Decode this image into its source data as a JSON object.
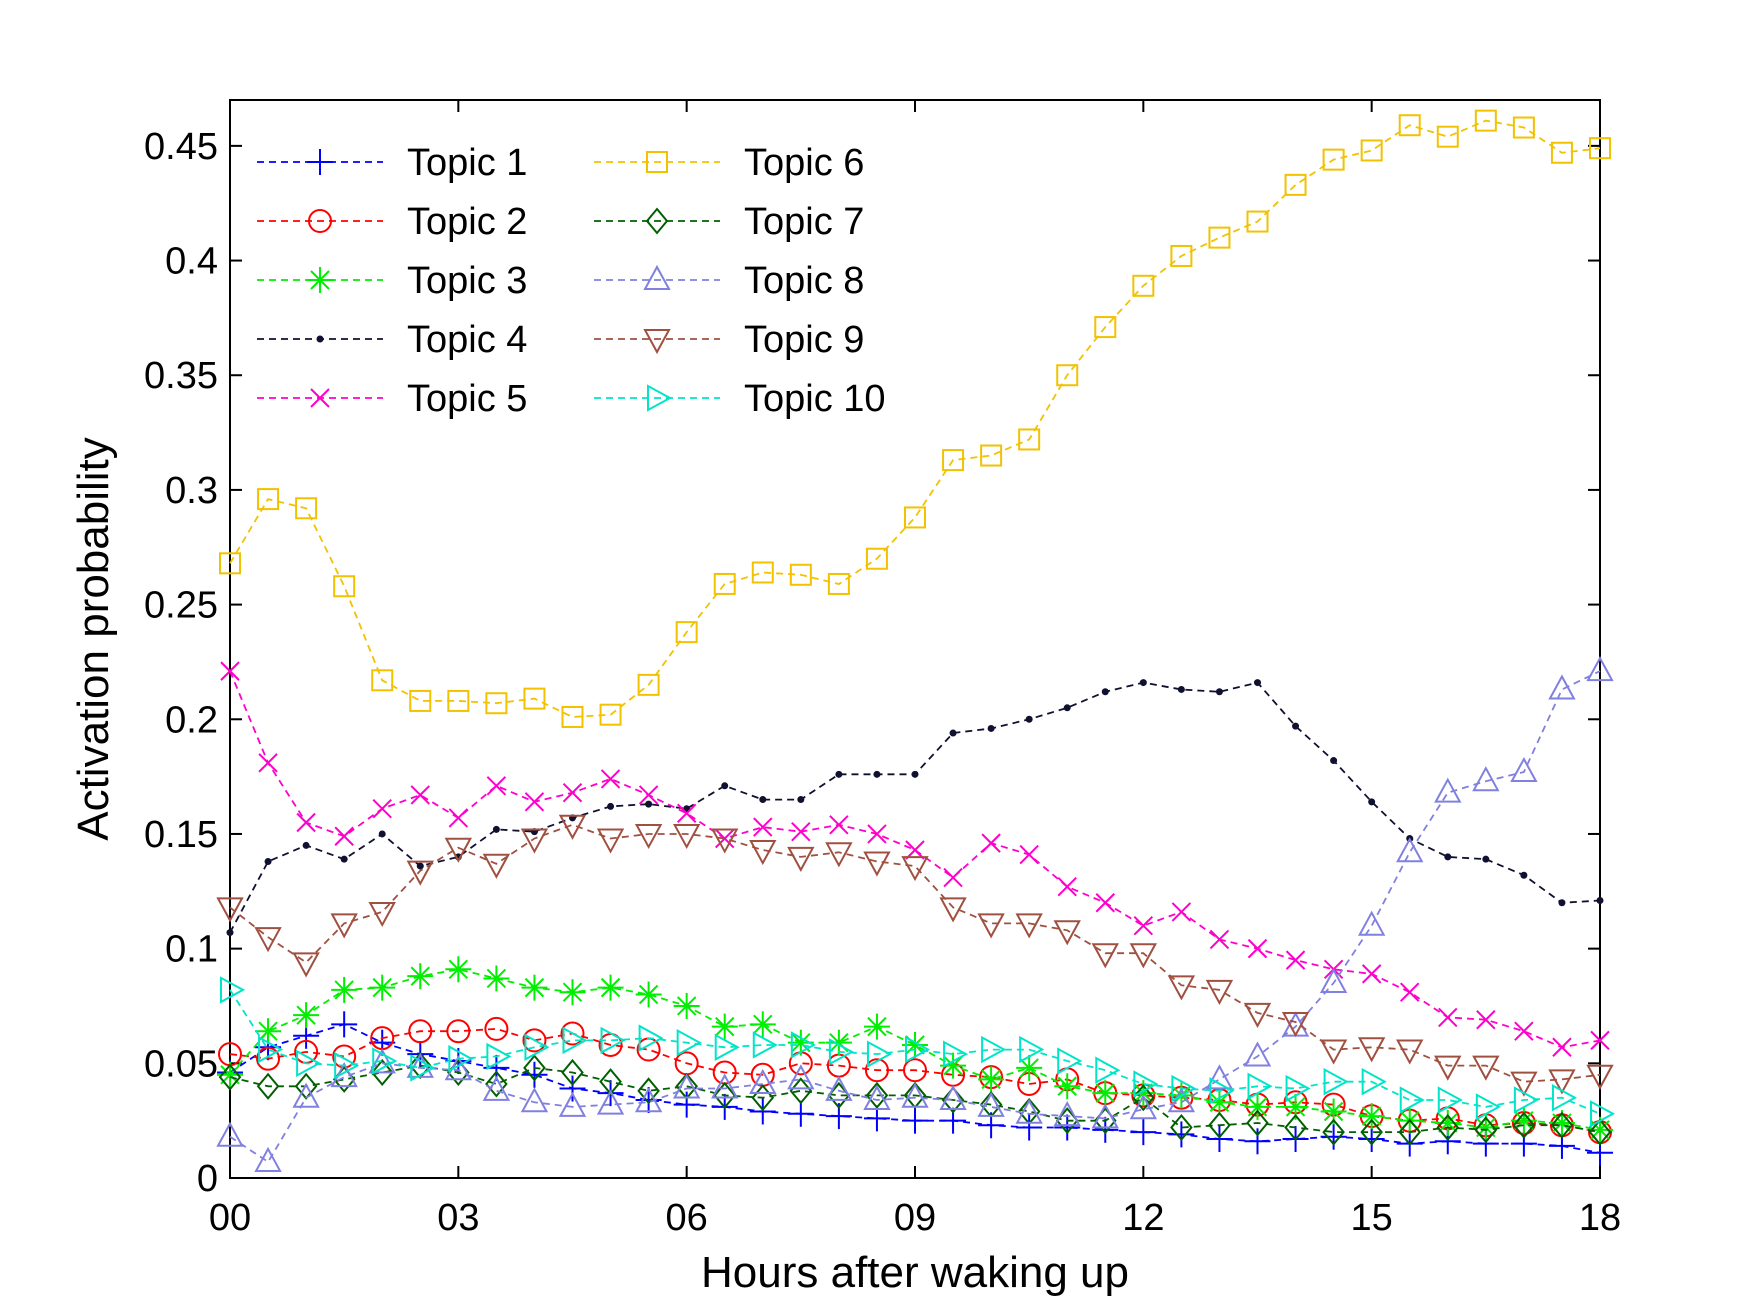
{
  "chart_data": {
    "type": "line",
    "title": "",
    "xlabel": "Hours after waking up",
    "ylabel": "Activation probability",
    "xlim": [
      0,
      18
    ],
    "ylim": [
      0,
      0.47
    ],
    "x_ticks": [
      0,
      3,
      6,
      9,
      12,
      15,
      18
    ],
    "x_tick_labels": [
      "00",
      "03",
      "06",
      "09",
      "12",
      "15",
      "18"
    ],
    "y_ticks": [
      0,
      0.05,
      0.1,
      0.15,
      0.2,
      0.25,
      0.3,
      0.35,
      0.4,
      0.45
    ],
    "y_tick_labels": [
      "0",
      "0.05",
      "0.1",
      "0.15",
      "0.2",
      "0.25",
      "0.3",
      "0.35",
      "0.4",
      "0.45"
    ],
    "grid": false,
    "legend_position": "top-left",
    "line_style": "dashed",
    "x": [
      0,
      0.5,
      1,
      1.5,
      2,
      2.5,
      3,
      3.5,
      4,
      4.5,
      5,
      5.5,
      6,
      6.5,
      7,
      7.5,
      8,
      8.5,
      9,
      9.5,
      10,
      10.5,
      11,
      11.5,
      12,
      12.5,
      13,
      13.5,
      14,
      14.5,
      15,
      15.5,
      16,
      16.5,
      17,
      17.5,
      18
    ],
    "series": [
      {
        "name": "Topic 1",
        "color": "#0000ff",
        "marker": "plus",
        "values": [
          0.046,
          0.057,
          0.062,
          0.067,
          0.059,
          0.054,
          0.051,
          0.048,
          0.045,
          0.039,
          0.037,
          0.034,
          0.032,
          0.031,
          0.029,
          0.028,
          0.027,
          0.026,
          0.025,
          0.025,
          0.023,
          0.022,
          0.022,
          0.021,
          0.02,
          0.019,
          0.017,
          0.016,
          0.017,
          0.018,
          0.017,
          0.015,
          0.016,
          0.015,
          0.015,
          0.014,
          0.011
        ]
      },
      {
        "name": "Topic 2",
        "color": "#ff0000",
        "marker": "circle",
        "values": [
          0.054,
          0.052,
          0.055,
          0.053,
          0.061,
          0.064,
          0.064,
          0.065,
          0.06,
          0.063,
          0.058,
          0.056,
          0.05,
          0.046,
          0.045,
          0.05,
          0.049,
          0.047,
          0.047,
          0.045,
          0.044,
          0.041,
          0.043,
          0.037,
          0.036,
          0.035,
          0.034,
          0.032,
          0.033,
          0.032,
          0.027,
          0.025,
          0.026,
          0.023,
          0.024,
          0.023,
          0.02
        ]
      },
      {
        "name": "Topic 3",
        "color": "#00ee00",
        "marker": "asterisk",
        "values": [
          0.045,
          0.064,
          0.071,
          0.082,
          0.083,
          0.088,
          0.091,
          0.087,
          0.083,
          0.081,
          0.083,
          0.08,
          0.075,
          0.066,
          0.067,
          0.059,
          0.059,
          0.066,
          0.058,
          0.049,
          0.043,
          0.048,
          0.04,
          0.037,
          0.037,
          0.036,
          0.033,
          0.031,
          0.031,
          0.029,
          0.027,
          0.025,
          0.024,
          0.022,
          0.025,
          0.024,
          0.021
        ]
      },
      {
        "name": "Topic 4",
        "color": "#101030",
        "marker": "dot",
        "values": [
          0.107,
          0.138,
          0.145,
          0.139,
          0.15,
          0.136,
          0.14,
          0.152,
          0.151,
          0.157,
          0.162,
          0.163,
          0.161,
          0.171,
          0.165,
          0.165,
          0.176,
          0.176,
          0.176,
          0.194,
          0.196,
          0.2,
          0.205,
          0.212,
          0.216,
          0.213,
          0.212,
          0.216,
          0.197,
          0.182,
          0.164,
          0.148,
          0.14,
          0.139,
          0.132,
          0.12,
          0.121
        ]
      },
      {
        "name": "Topic 5",
        "color": "#ff00cc",
        "marker": "x",
        "values": [
          0.221,
          0.181,
          0.155,
          0.149,
          0.161,
          0.167,
          0.157,
          0.171,
          0.164,
          0.168,
          0.174,
          0.167,
          0.159,
          0.148,
          0.153,
          0.151,
          0.154,
          0.15,
          0.143,
          0.131,
          0.146,
          0.141,
          0.127,
          0.12,
          0.11,
          0.116,
          0.104,
          0.1,
          0.095,
          0.091,
          0.089,
          0.081,
          0.07,
          0.069,
          0.064,
          0.057,
          0.06
        ]
      },
      {
        "name": "Topic 6",
        "color": "#f2c200",
        "marker": "square",
        "values": [
          0.268,
          0.296,
          0.292,
          0.258,
          0.217,
          0.208,
          0.208,
          0.207,
          0.209,
          0.201,
          0.202,
          0.215,
          0.238,
          0.259,
          0.264,
          0.263,
          0.259,
          0.27,
          0.288,
          0.313,
          0.315,
          0.322,
          0.35,
          0.371,
          0.389,
          0.402,
          0.41,
          0.417,
          0.433,
          0.444,
          0.448,
          0.459,
          0.454,
          0.461,
          0.458,
          0.447,
          0.449
        ]
      },
      {
        "name": "Topic 7",
        "color": "#006000",
        "marker": "diamond",
        "values": [
          0.044,
          0.04,
          0.04,
          0.043,
          0.046,
          0.049,
          0.046,
          0.041,
          0.048,
          0.046,
          0.042,
          0.038,
          0.04,
          0.036,
          0.035,
          0.038,
          0.036,
          0.036,
          0.036,
          0.034,
          0.032,
          0.029,
          0.025,
          0.025,
          0.035,
          0.022,
          0.023,
          0.024,
          0.022,
          0.02,
          0.02,
          0.02,
          0.022,
          0.021,
          0.023,
          0.023,
          0.02
        ]
      },
      {
        "name": "Topic 8",
        "color": "#8080e0",
        "marker": "triangle-up",
        "values": [
          0.018,
          0.007,
          0.035,
          0.044,
          0.05,
          0.048,
          0.047,
          0.038,
          0.033,
          0.031,
          0.032,
          0.033,
          0.039,
          0.039,
          0.041,
          0.043,
          0.038,
          0.034,
          0.035,
          0.034,
          0.031,
          0.028,
          0.027,
          0.026,
          0.03,
          0.033,
          0.043,
          0.053,
          0.066,
          0.085,
          0.11,
          0.142,
          0.168,
          0.173,
          0.177,
          0.213,
          0.221
        ]
      },
      {
        "name": "Topic 9",
        "color": "#a05040",
        "marker": "triangle-down",
        "values": [
          0.118,
          0.105,
          0.094,
          0.111,
          0.116,
          0.134,
          0.144,
          0.137,
          0.148,
          0.154,
          0.148,
          0.15,
          0.15,
          0.148,
          0.143,
          0.14,
          0.142,
          0.138,
          0.136,
          0.118,
          0.111,
          0.111,
          0.108,
          0.098,
          0.098,
          0.084,
          0.082,
          0.072,
          0.068,
          0.056,
          0.057,
          0.056,
          0.049,
          0.049,
          0.042,
          0.043,
          0.045
        ]
      },
      {
        "name": "Topic 10",
        "color": "#00e5c8",
        "marker": "triangle-right",
        "values": [
          0.082,
          0.056,
          0.05,
          0.049,
          0.051,
          0.048,
          0.052,
          0.053,
          0.057,
          0.06,
          0.06,
          0.061,
          0.059,
          0.057,
          0.058,
          0.058,
          0.055,
          0.054,
          0.056,
          0.054,
          0.056,
          0.056,
          0.051,
          0.047,
          0.041,
          0.039,
          0.038,
          0.04,
          0.039,
          0.042,
          0.042,
          0.034,
          0.034,
          0.031,
          0.034,
          0.035,
          0.028
        ]
      }
    ]
  }
}
